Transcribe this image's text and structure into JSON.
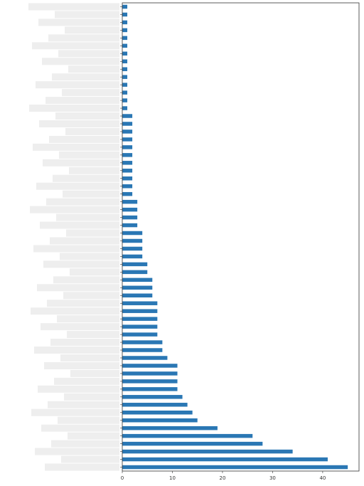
{
  "chart_data": {
    "type": "barh",
    "categories": [
      null,
      null,
      null,
      null,
      null,
      null,
      null,
      null,
      null,
      null,
      null,
      null,
      null,
      null,
      null,
      null,
      null,
      null,
      null,
      null,
      null,
      null,
      null,
      null,
      null,
      null,
      null,
      null,
      null,
      null,
      null,
      null,
      null,
      null,
      null,
      null,
      null,
      null,
      null,
      null,
      null,
      null,
      null,
      null,
      null,
      null,
      null,
      null,
      null,
      null,
      null,
      null,
      null,
      null,
      null,
      null,
      null,
      null,
      null,
      null
    ],
    "values": [
      1,
      1,
      1,
      1,
      1,
      1,
      1,
      1,
      1,
      1,
      1,
      1,
      1,
      1,
      2,
      2,
      2,
      2,
      2,
      2,
      2,
      2,
      2,
      2,
      2,
      3,
      3,
      3,
      3,
      4,
      4,
      4,
      4,
      5,
      5,
      6,
      6,
      6,
      7,
      7,
      7,
      7,
      7,
      8,
      8,
      9,
      11,
      11,
      11,
      11,
      12,
      13,
      14,
      15,
      19,
      26,
      28,
      34,
      41,
      45
    ],
    "color": "#2a77b4",
    "xlim": [
      0,
      47.25
    ],
    "xticks": [
      0,
      10,
      20,
      30,
      40
    ]
  }
}
